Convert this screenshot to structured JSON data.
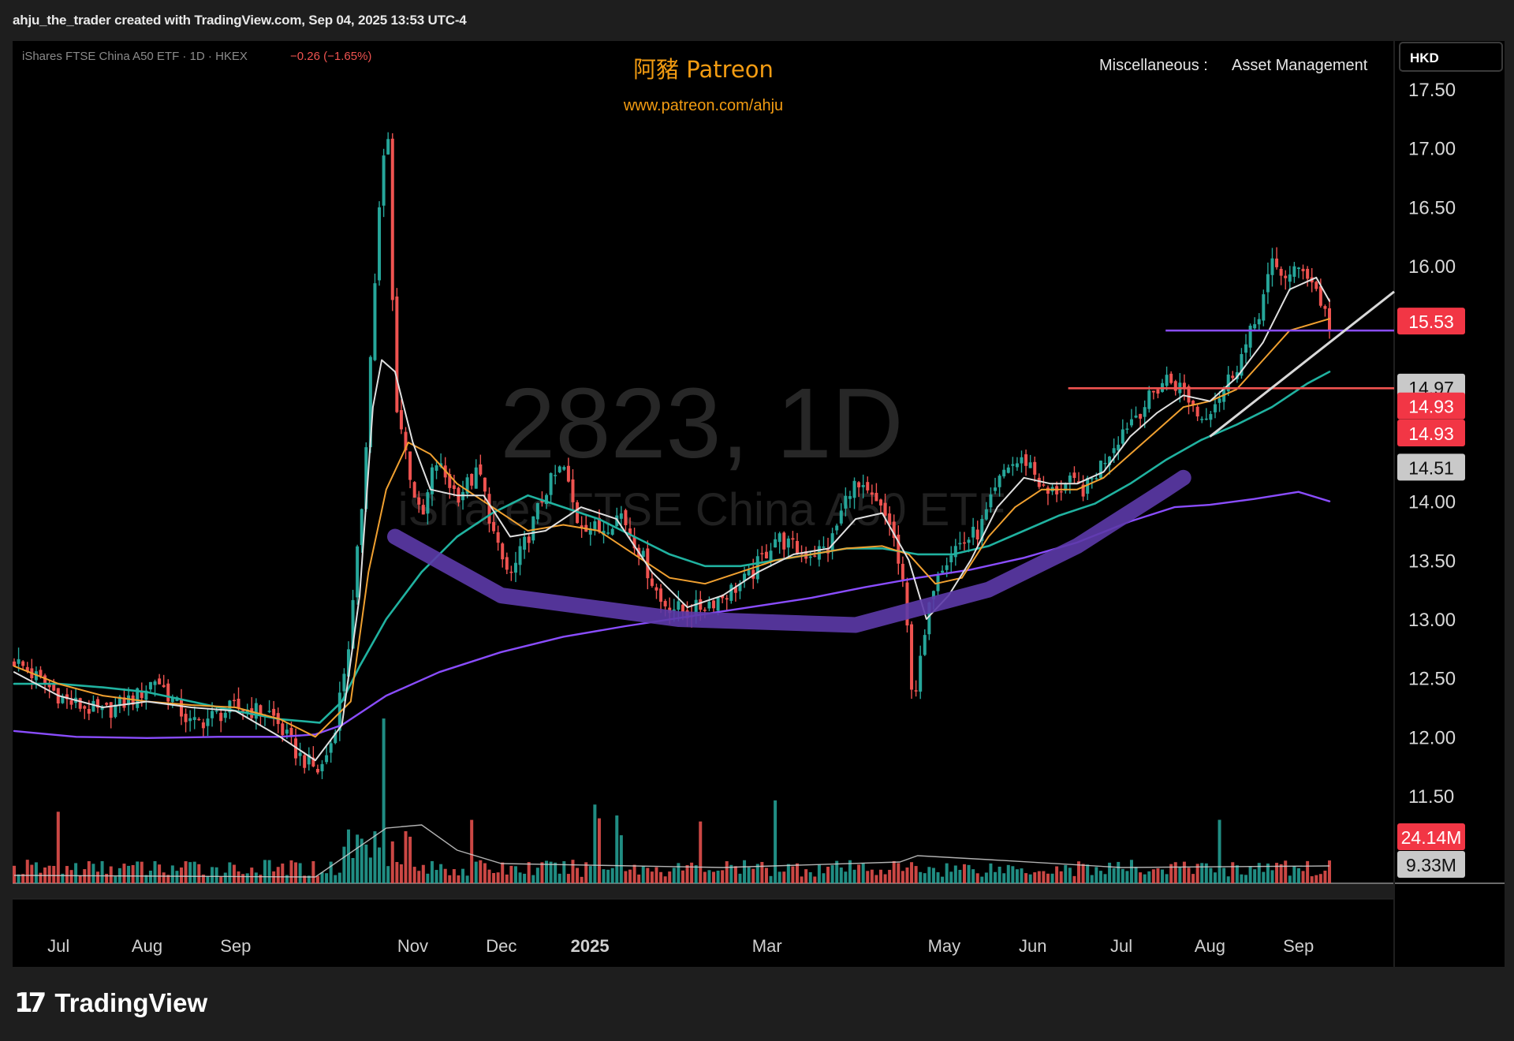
{
  "header": {
    "caption": "ahju_the_trader created with TradingView.com, Sep 04, 2025 13:53 UTC-4"
  },
  "symbol_bar": {
    "label": "iShares FTSE China A50 ETF · 1D · HKEX",
    "change": "−0.26 (−1.65%)"
  },
  "branding": {
    "title": "阿豬 Patreon",
    "url": "www.patreon.com/ahju"
  },
  "category": {
    "label": "Miscellaneous :",
    "value": "Asset Management"
  },
  "watermark": {
    "main": "2823, 1D",
    "sub": "iShares FTSE China A50 ETF"
  },
  "currency": "HKD",
  "footer": {
    "logo_mark": "17",
    "logo_text": "TradingView"
  },
  "colors": {
    "up": "#26a69a",
    "down": "#ef5350",
    "ma_short": "#e0e0e0",
    "ma_mid": "#f0a030",
    "ma_long": "#20b2a0",
    "ma_200": "#8a4dff",
    "brand": "#f39c12",
    "background": "#000000"
  },
  "chart_data": {
    "type": "candlestick",
    "price_axis": {
      "range": [
        11.05,
        17.55
      ],
      "ticks": [
        "17.50",
        "17.00",
        "16.50",
        "16.00",
        "14.00",
        "13.50",
        "13.00",
        "12.50",
        "12.00",
        "11.50"
      ]
    },
    "time_axis": {
      "labels": [
        "Jul",
        "Aug",
        "Sep",
        "Nov",
        "Dec",
        "2025",
        "Mar",
        "May",
        "Jun",
        "Jul",
        "Aug",
        "Sep"
      ],
      "label_positions": [
        0.5,
        1.5,
        2.5,
        4.5,
        5.5,
        6.5,
        8.5,
        10.5,
        11.5,
        12.5,
        13.5,
        14.5
      ],
      "month_range": [
        0,
        15.58
      ]
    },
    "price_tags": [
      {
        "value": "15.53",
        "price": 15.53,
        "style": "down"
      },
      {
        "value": "14.97",
        "price": 14.97,
        "style": "gray"
      },
      {
        "value": "14.93",
        "price": 14.81,
        "style": "down"
      },
      {
        "value": "14.93",
        "price": 14.58,
        "style": "down"
      },
      {
        "value": "14.51",
        "price": 14.29,
        "style": "gray"
      }
    ],
    "volume_tags": [
      {
        "value": "24.14M",
        "style": "down"
      },
      {
        "value": "9.33M",
        "style": "gray"
      }
    ],
    "horizontal_lines": [
      {
        "price": 15.45,
        "from_month": 13.0,
        "color": "#8a4dff"
      },
      {
        "price": 14.96,
        "from_month": 11.9,
        "color": "#ef5350"
      }
    ],
    "trendline": {
      "from": [
        13.5,
        14.55
      ],
      "to": [
        15.58,
        15.78
      ],
      "color": "#d8d8d8"
    },
    "cup_arc": {
      "points": [
        [
          4.3,
          13.7
        ],
        [
          5.5,
          13.2
        ],
        [
          7.5,
          13.0
        ],
        [
          9.5,
          12.95
        ],
        [
          11.0,
          13.25
        ],
        [
          12.0,
          13.62
        ],
        [
          13.0,
          14.1
        ],
        [
          13.2,
          14.2
        ]
      ],
      "color": "#5c3aa8"
    },
    "price_keypoints": [
      [
        0,
        12.65
      ],
      [
        0.6,
        12.3
      ],
      [
        1.0,
        12.2
      ],
      [
        1.4,
        12.35
      ],
      [
        1.6,
        12.5
      ],
      [
        2.0,
        12.1
      ],
      [
        2.5,
        12.25
      ],
      [
        2.9,
        12.2
      ],
      [
        3.2,
        11.85
      ],
      [
        3.45,
        11.7
      ],
      [
        3.6,
        12.0
      ],
      [
        3.8,
        12.9
      ],
      [
        3.95,
        14.2
      ],
      [
        4.05,
        15.6
      ],
      [
        4.15,
        16.8
      ],
      [
        4.22,
        17.1
      ],
      [
        4.3,
        14.9
      ],
      [
        4.45,
        14.3
      ],
      [
        4.6,
        13.8
      ],
      [
        4.75,
        14.35
      ],
      [
        5.0,
        14.05
      ],
      [
        5.25,
        14.25
      ],
      [
        5.45,
        13.6
      ],
      [
        5.6,
        13.35
      ],
      [
        5.8,
        13.7
      ],
      [
        6.0,
        14.1
      ],
      [
        6.2,
        14.3
      ],
      [
        6.35,
        13.85
      ],
      [
        6.6,
        13.75
      ],
      [
        6.85,
        13.9
      ],
      [
        7.05,
        13.6
      ],
      [
        7.3,
        13.15
      ],
      [
        7.6,
        13.05
      ],
      [
        8.0,
        13.2
      ],
      [
        8.3,
        13.35
      ],
      [
        8.6,
        13.7
      ],
      [
        8.9,
        13.55
      ],
      [
        9.2,
        13.6
      ],
      [
        9.45,
        14.15
      ],
      [
        9.7,
        14.0
      ],
      [
        9.9,
        13.8
      ],
      [
        10.05,
        13.2
      ],
      [
        10.15,
        12.3
      ],
      [
        10.25,
        12.7
      ],
      [
        10.4,
        13.4
      ],
      [
        10.6,
        13.6
      ],
      [
        10.9,
        13.75
      ],
      [
        11.2,
        14.3
      ],
      [
        11.45,
        14.35
      ],
      [
        11.65,
        14.05
      ],
      [
        11.9,
        14.15
      ],
      [
        12.1,
        14.1
      ],
      [
        12.3,
        14.35
      ],
      [
        12.55,
        14.65
      ],
      [
        12.8,
        14.85
      ],
      [
        13.0,
        15.05
      ],
      [
        13.2,
        14.95
      ],
      [
        13.4,
        14.7
      ],
      [
        13.65,
        14.95
      ],
      [
        13.9,
        15.3
      ],
      [
        14.05,
        15.6
      ],
      [
        14.2,
        16.0
      ],
      [
        14.4,
        15.9
      ],
      [
        14.55,
        16.0
      ],
      [
        14.7,
        15.8
      ],
      [
        14.85,
        15.5
      ]
    ],
    "ma_short_points": [
      [
        0,
        12.55
      ],
      [
        0.5,
        12.35
      ],
      [
        1.0,
        12.25
      ],
      [
        1.5,
        12.3
      ],
      [
        2.0,
        12.25
      ],
      [
        2.5,
        12.22
      ],
      [
        3.0,
        12.0
      ],
      [
        3.4,
        11.8
      ],
      [
        3.7,
        12.1
      ],
      [
        3.9,
        13.2
      ],
      [
        4.05,
        14.8
      ],
      [
        4.15,
        15.2
      ],
      [
        4.3,
        15.1
      ],
      [
        4.5,
        14.5
      ],
      [
        4.7,
        14.1
      ],
      [
        5.0,
        14.05
      ],
      [
        5.3,
        14.05
      ],
      [
        5.6,
        13.7
      ],
      [
        6.0,
        13.75
      ],
      [
        6.4,
        13.95
      ],
      [
        6.8,
        13.85
      ],
      [
        7.2,
        13.4
      ],
      [
        7.6,
        13.1
      ],
      [
        8.0,
        13.2
      ],
      [
        8.4,
        13.4
      ],
      [
        8.8,
        13.55
      ],
      [
        9.2,
        13.6
      ],
      [
        9.5,
        13.85
      ],
      [
        9.8,
        13.9
      ],
      [
        10.1,
        13.5
      ],
      [
        10.3,
        13.0
      ],
      [
        10.55,
        13.2
      ],
      [
        10.8,
        13.5
      ],
      [
        11.1,
        13.95
      ],
      [
        11.4,
        14.2
      ],
      [
        11.7,
        14.15
      ],
      [
        12.0,
        14.15
      ],
      [
        12.3,
        14.25
      ],
      [
        12.6,
        14.55
      ],
      [
        12.9,
        14.75
      ],
      [
        13.2,
        14.9
      ],
      [
        13.5,
        14.85
      ],
      [
        13.8,
        15.05
      ],
      [
        14.1,
        15.35
      ],
      [
        14.4,
        15.8
      ],
      [
        14.7,
        15.9
      ],
      [
        14.85,
        15.7
      ]
    ],
    "ma_mid_points": [
      [
        0,
        12.6
      ],
      [
        0.5,
        12.45
      ],
      [
        1.0,
        12.35
      ],
      [
        1.5,
        12.3
      ],
      [
        2.0,
        12.27
      ],
      [
        2.5,
        12.25
      ],
      [
        3.0,
        12.15
      ],
      [
        3.4,
        12.0
      ],
      [
        3.8,
        12.3
      ],
      [
        4.0,
        13.4
      ],
      [
        4.2,
        14.1
      ],
      [
        4.45,
        14.5
      ],
      [
        4.7,
        14.4
      ],
      [
        5.0,
        14.15
      ],
      [
        5.4,
        13.95
      ],
      [
        5.8,
        13.75
      ],
      [
        6.2,
        13.8
      ],
      [
        6.6,
        13.75
      ],
      [
        7.0,
        13.55
      ],
      [
        7.4,
        13.35
      ],
      [
        7.8,
        13.3
      ],
      [
        8.2,
        13.4
      ],
      [
        8.6,
        13.5
      ],
      [
        9.0,
        13.55
      ],
      [
        9.4,
        13.6
      ],
      [
        9.8,
        13.62
      ],
      [
        10.1,
        13.55
      ],
      [
        10.4,
        13.3
      ],
      [
        10.7,
        13.35
      ],
      [
        11.0,
        13.7
      ],
      [
        11.3,
        13.95
      ],
      [
        11.6,
        14.1
      ],
      [
        12.0,
        14.1
      ],
      [
        12.3,
        14.2
      ],
      [
        12.6,
        14.4
      ],
      [
        12.9,
        14.6
      ],
      [
        13.2,
        14.8
      ],
      [
        13.5,
        14.85
      ],
      [
        13.8,
        14.95
      ],
      [
        14.1,
        15.2
      ],
      [
        14.4,
        15.45
      ],
      [
        14.85,
        15.55
      ]
    ],
    "ma_long_points": [
      [
        0,
        12.45
      ],
      [
        0.5,
        12.45
      ],
      [
        1.0,
        12.42
      ],
      [
        1.5,
        12.38
      ],
      [
        2.0,
        12.3
      ],
      [
        2.5,
        12.22
      ],
      [
        3.0,
        12.15
      ],
      [
        3.45,
        12.12
      ],
      [
        3.7,
        12.3
      ],
      [
        3.9,
        12.6
      ],
      [
        4.2,
        13.0
      ],
      [
        4.6,
        13.4
      ],
      [
        5.0,
        13.7
      ],
      [
        5.4,
        13.9
      ],
      [
        5.8,
        14.05
      ],
      [
        6.2,
        13.95
      ],
      [
        6.6,
        13.85
      ],
      [
        7.0,
        13.7
      ],
      [
        7.4,
        13.55
      ],
      [
        7.8,
        13.45
      ],
      [
        8.2,
        13.45
      ],
      [
        8.6,
        13.5
      ],
      [
        9.0,
        13.55
      ],
      [
        9.4,
        13.6
      ],
      [
        9.8,
        13.6
      ],
      [
        10.2,
        13.55
      ],
      [
        10.6,
        13.55
      ],
      [
        11.0,
        13.62
      ],
      [
        11.4,
        13.75
      ],
      [
        11.8,
        13.88
      ],
      [
        12.2,
        13.98
      ],
      [
        12.6,
        14.15
      ],
      [
        13.0,
        14.35
      ],
      [
        13.4,
        14.52
      ],
      [
        13.8,
        14.65
      ],
      [
        14.2,
        14.8
      ],
      [
        14.6,
        15.0
      ],
      [
        14.85,
        15.1
      ]
    ],
    "ma_200_points": [
      [
        0,
        12.05
      ],
      [
        0.7,
        12.0
      ],
      [
        1.5,
        11.99
      ],
      [
        2.3,
        12.0
      ],
      [
        3.0,
        12.0
      ],
      [
        3.4,
        12.02
      ],
      [
        3.7,
        12.1
      ],
      [
        4.2,
        12.35
      ],
      [
        4.8,
        12.55
      ],
      [
        5.5,
        12.72
      ],
      [
        6.2,
        12.85
      ],
      [
        6.9,
        12.94
      ],
      [
        7.6,
        13.02
      ],
      [
        8.3,
        13.1
      ],
      [
        9.0,
        13.18
      ],
      [
        9.6,
        13.27
      ],
      [
        10.2,
        13.35
      ],
      [
        10.8,
        13.42
      ],
      [
        11.4,
        13.52
      ],
      [
        12.0,
        13.65
      ],
      [
        12.6,
        13.83
      ],
      [
        13.1,
        13.95
      ],
      [
        13.5,
        13.97
      ],
      [
        14.0,
        14.02
      ],
      [
        14.5,
        14.08
      ],
      [
        14.85,
        14.0
      ]
    ]
  }
}
